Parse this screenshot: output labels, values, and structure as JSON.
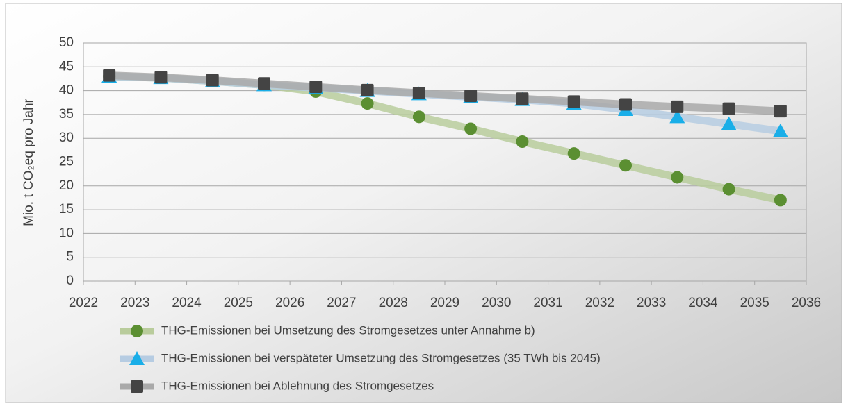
{
  "chart_data": {
    "type": "line",
    "y_label": "Mio. t CO₂eq pro Jahr",
    "x": [
      2022.5,
      2023.5,
      2024.5,
      2025.5,
      2026.5,
      2027.5,
      2028.5,
      2029.5,
      2030.5,
      2031.5,
      2032.5,
      2033.5,
      2034.5,
      2035.5
    ],
    "xlim": [
      2022,
      2036
    ],
    "xticks": [
      2022,
      2023,
      2024,
      2025,
      2026,
      2027,
      2028,
      2029,
      2030,
      2031,
      2032,
      2033,
      2034,
      2035,
      2036
    ],
    "ylim": [
      0,
      50
    ],
    "yticks": [
      0,
      5,
      10,
      15,
      20,
      25,
      30,
      35,
      40,
      45,
      50
    ],
    "grid": true,
    "legend": "bottom",
    "series": [
      {
        "name": "THG-Emissionen bei Umsetzung des Stromgesetzes unter Annahme b)",
        "color": "#5b8f32",
        "line_color": "#b9cc9c",
        "marker": "circle",
        "values": [
          43,
          42.7,
          42,
          41.2,
          39.8,
          37.3,
          34.5,
          32,
          29.3,
          26.8,
          24.3,
          21.8,
          19.3,
          17
        ]
      },
      {
        "name": "THG-Emissionen bei verspäteter Umsetzung des Stromgesetzes (35 TWh bis 2045)",
        "color": "#19aee8",
        "line_color": "#b6cce2",
        "marker": "triangle",
        "values": [
          43,
          42.7,
          42,
          41.2,
          40.6,
          40,
          39.3,
          38.7,
          38.1,
          37.3,
          36,
          34.5,
          33,
          31.5
        ]
      },
      {
        "name": "THG-Emissionen bei Ablehnung des Stromgesetzes",
        "color": "#444444",
        "line_color": "#a9a9a9",
        "marker": "square",
        "values": [
          43.2,
          42.8,
          42.2,
          41.5,
          40.8,
          40.1,
          39.5,
          38.9,
          38.3,
          37.7,
          37.1,
          36.6,
          36.2,
          35.7
        ]
      }
    ]
  }
}
